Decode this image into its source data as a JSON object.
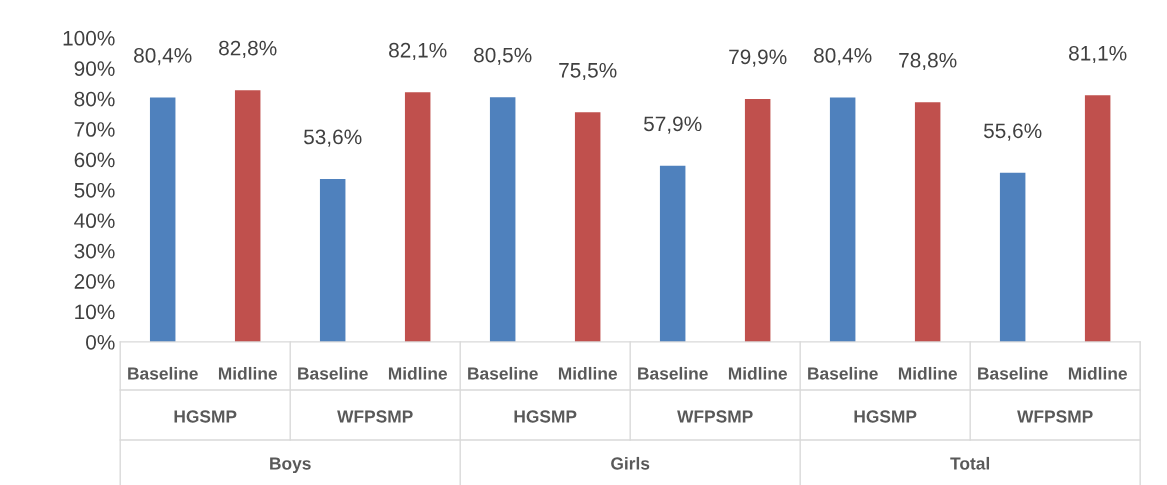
{
  "chart_data": {
    "type": "bar",
    "categories": [
      "Baseline",
      "Midline",
      "Baseline",
      "Midline",
      "Baseline",
      "Midline",
      "Baseline",
      "Midline",
      "Baseline",
      "Midline",
      "Baseline",
      "Midline"
    ],
    "values": [
      80.4,
      82.8,
      53.6,
      82.1,
      80.5,
      75.5,
      57.9,
      79.9,
      80.4,
      78.8,
      55.6,
      81.1
    ],
    "colors": [
      "#4f81bd",
      "#c0504d",
      "#4f81bd",
      "#c0504d",
      "#4f81bd",
      "#c0504d",
      "#4f81bd",
      "#c0504d",
      "#4f81bd",
      "#c0504d",
      "#4f81bd",
      "#c0504d"
    ],
    "value_labels": [
      "80,4%",
      "82,8%",
      "53,6%",
      "82,1%",
      "80,5%",
      "75,5%",
      "57,9%",
      "79,9%",
      "80,4%",
      "78,8%",
      "55,6%",
      "81,1%"
    ],
    "annotations": [
      "HGSMP",
      "WFPSMP",
      "HGSMP",
      "WFPSMP",
      "HGSMP",
      "WFPSMP",
      "Boys",
      "Girls",
      "Total"
    ],
    "ylim": [
      0,
      100
    ],
    "yticks": [
      {
        "value": 0,
        "label": "0%"
      },
      {
        "value": 10,
        "label": "10%"
      },
      {
        "value": 20,
        "label": "20%"
      },
      {
        "value": 30,
        "label": "30%"
      },
      {
        "value": 40,
        "label": "40%"
      },
      {
        "value": 50,
        "label": "50%"
      },
      {
        "value": 60,
        "label": "60%"
      },
      {
        "value": 70,
        "label": "70%"
      },
      {
        "value": 80,
        "label": "80%"
      },
      {
        "value": 90,
        "label": "90%"
      },
      {
        "value": 100,
        "label": "100%"
      }
    ],
    "grid": false,
    "legend": false
  }
}
